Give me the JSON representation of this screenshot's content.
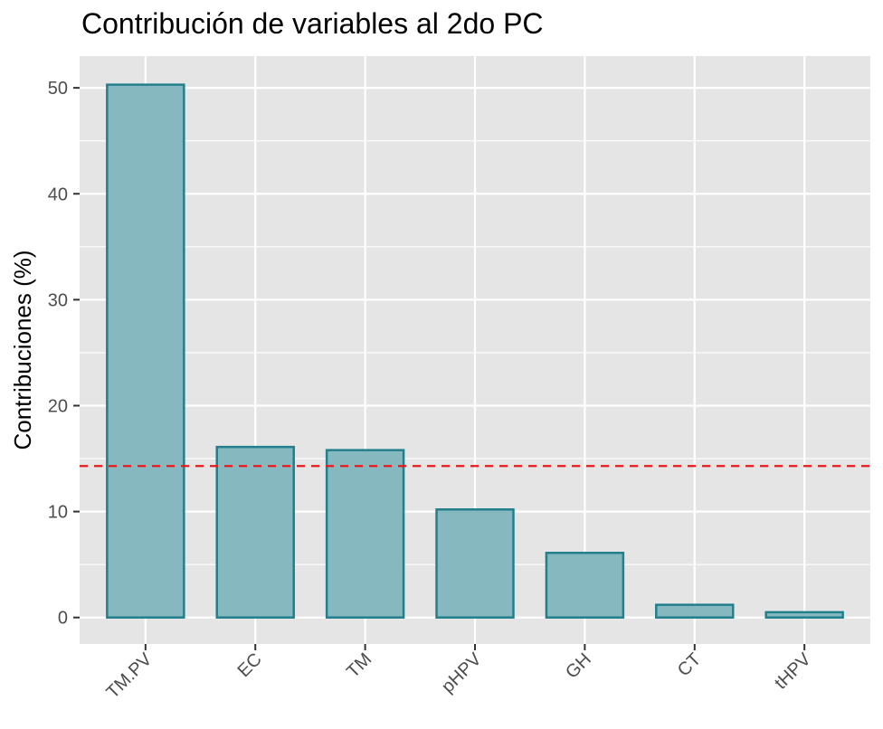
{
  "chart_data": {
    "type": "bar",
    "title": "Contribución de variables al 2do PC",
    "xlabel": "",
    "ylabel": "Contribuciones (%)",
    "categories": [
      "TM.PV",
      "EC",
      "TM",
      "pHPV",
      "GH",
      "CT",
      "tHPV"
    ],
    "values": [
      50.3,
      16.1,
      15.8,
      10.2,
      6.1,
      1.2,
      0.5
    ],
    "ylim": [
      -2.5,
      53
    ],
    "yticks": [
      0,
      10,
      20,
      30,
      40,
      50
    ],
    "reference_line": {
      "value": 14.3,
      "style": "dashed",
      "color": "#e41a1c"
    },
    "bar_fill": "#85b9bf",
    "bar_outline": "#237f8c",
    "panel_background": "#e5e5e5",
    "grid": true,
    "legend": "none"
  }
}
